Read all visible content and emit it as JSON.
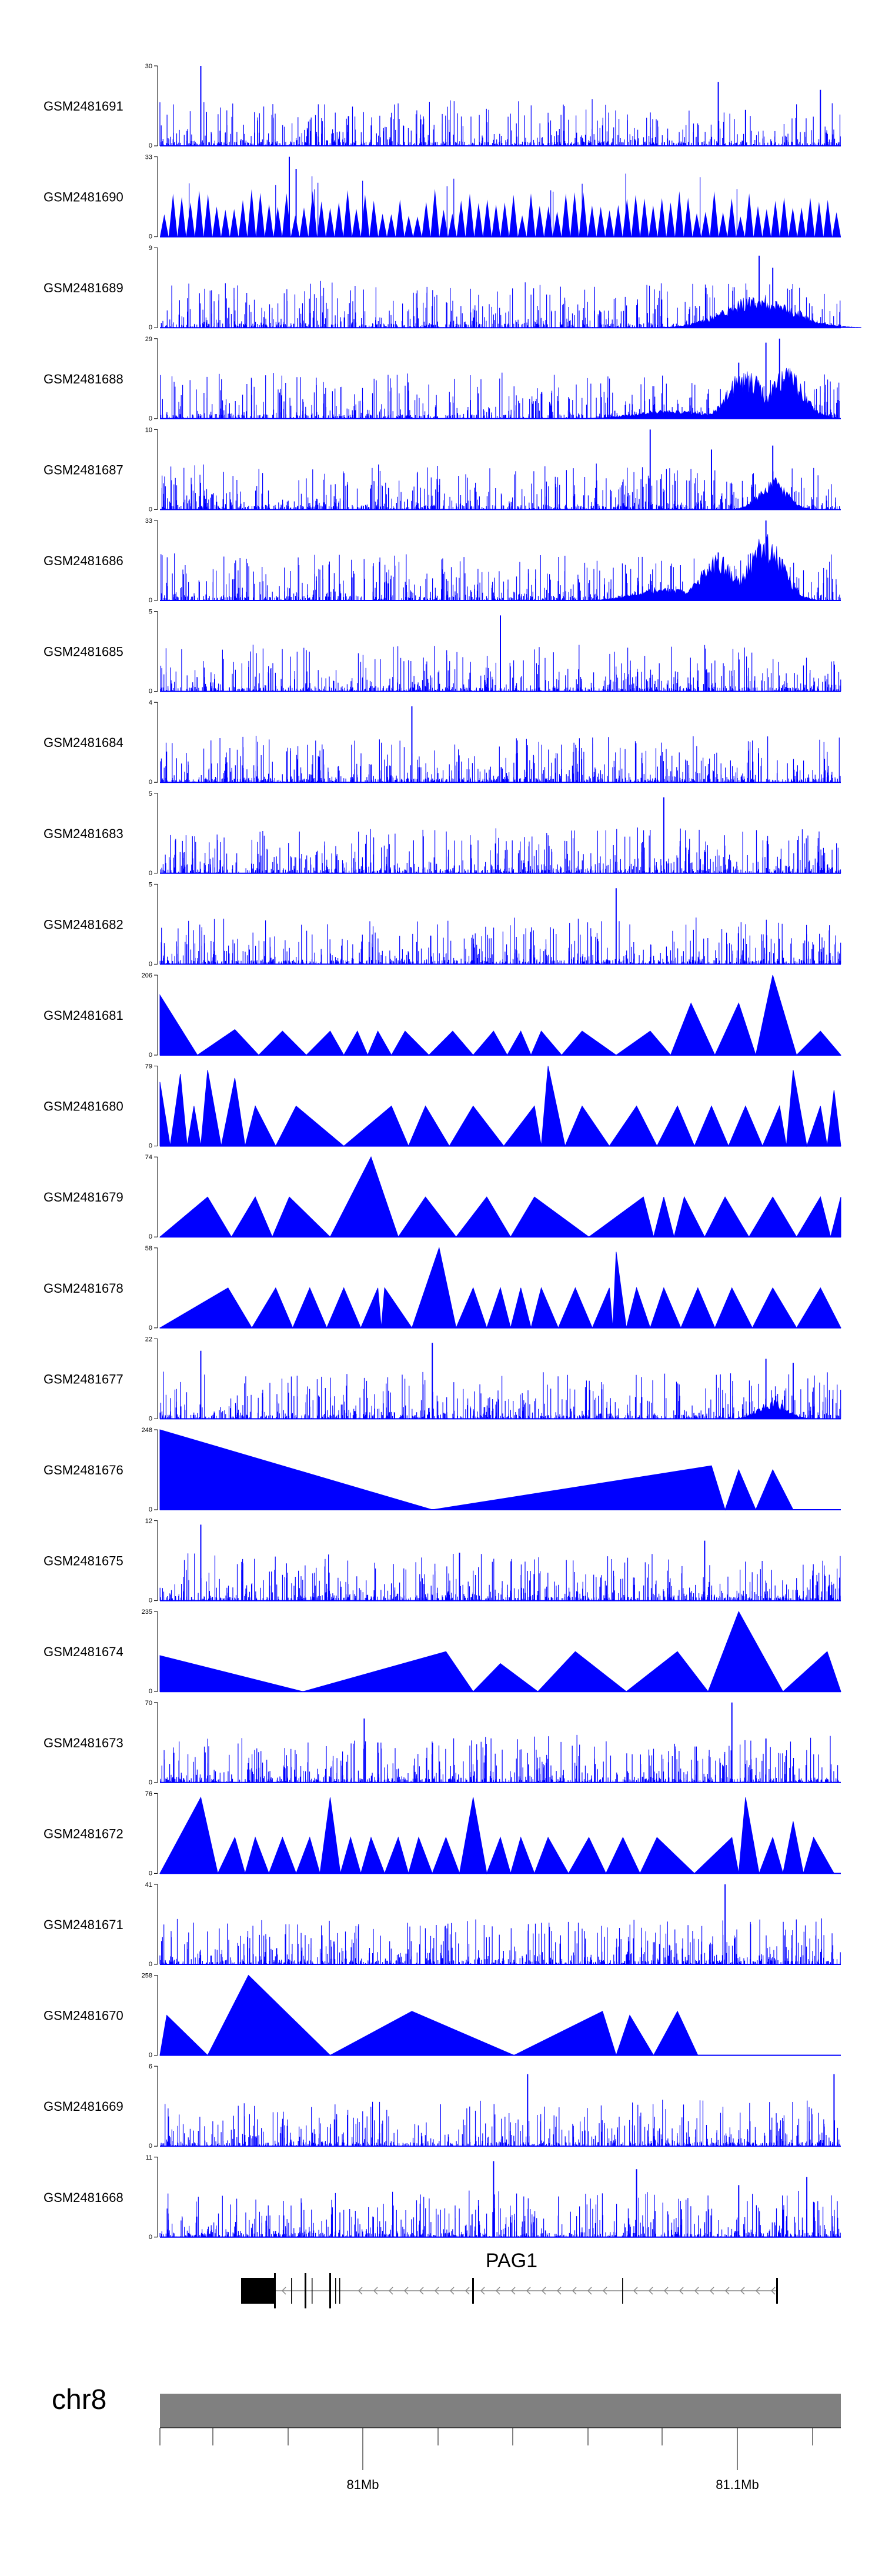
{
  "chart_data": {
    "type": "area",
    "color_signal": "#0000ff",
    "color_chromosome": "#808080",
    "tracks": [
      {
        "name": "GSM2481691",
        "ymax": 30,
        "ymin": 0,
        "style": "dense",
        "peaks": [
          [
            0.06,
            1.0
          ],
          [
            0.82,
            0.8
          ],
          [
            0.86,
            0.45
          ],
          [
            0.97,
            0.7
          ]
        ],
        "bumps": []
      },
      {
        "name": "GSM2481690",
        "ymax": 33,
        "ymin": 0,
        "style": "spikes",
        "peaks": [
          [
            0.2,
            0.85
          ],
          [
            0.19,
            1.0
          ]
        ]
      },
      {
        "name": "GSM2481689",
        "ymax": 9,
        "ymin": 0,
        "style": "dense",
        "peaks": [
          [
            0.88,
            0.9
          ],
          [
            0.9,
            0.75
          ]
        ],
        "bumps": [
          [
            0.88,
            0.35,
            0.05
          ]
        ]
      },
      {
        "name": "GSM2481688",
        "ymax": 29,
        "ymin": 0,
        "style": "dense",
        "peaks": [
          [
            0.85,
            0.7
          ],
          [
            0.89,
            0.95
          ],
          [
            0.91,
            1.0
          ]
        ],
        "bumps": [
          [
            0.86,
            0.55,
            0.025
          ],
          [
            0.92,
            0.55,
            0.025
          ],
          [
            0.75,
            0.1,
            0.05
          ]
        ]
      },
      {
        "name": "GSM2481687",
        "ymax": 10,
        "ymin": 0,
        "style": "dense",
        "peaks": [
          [
            0.72,
            1.0
          ],
          [
            0.81,
            0.75
          ],
          [
            0.9,
            0.8
          ]
        ],
        "bumps": [
          [
            0.9,
            0.35,
            0.02
          ]
        ]
      },
      {
        "name": "GSM2481686",
        "ymax": 33,
        "ymin": 0,
        "style": "dense",
        "peaks": [
          [
            0.82,
            0.6
          ],
          [
            0.89,
            1.0
          ]
        ],
        "bumps": [
          [
            0.82,
            0.5,
            0.025
          ],
          [
            0.89,
            0.7,
            0.025
          ],
          [
            0.74,
            0.15,
            0.04
          ]
        ]
      },
      {
        "name": "GSM2481685",
        "ymax": 5,
        "ymin": 0,
        "style": "dense",
        "peaks": [
          [
            0.5,
            0.95
          ]
        ],
        "bumps": []
      },
      {
        "name": "GSM2481684",
        "ymax": 4,
        "ymin": 0,
        "style": "dense",
        "peaks": [
          [
            0.37,
            0.95
          ]
        ],
        "bumps": []
      },
      {
        "name": "GSM2481683",
        "ymax": 5,
        "ymin": 0,
        "style": "dense",
        "peaks": [
          [
            0.74,
            0.95
          ]
        ],
        "bumps": []
      },
      {
        "name": "GSM2481682",
        "ymax": 5,
        "ymin": 0,
        "style": "dense",
        "peaks": [
          [
            0.67,
            0.95
          ]
        ],
        "bumps": []
      },
      {
        "name": "GSM2481681",
        "ymax": 206,
        "ymin": 0,
        "style": "triangles",
        "peaks": [
          [
            0.0,
            0.75
          ],
          [
            0.11,
            0.32
          ],
          [
            0.18,
            0.3
          ],
          [
            0.25,
            0.3
          ],
          [
            0.29,
            0.3
          ],
          [
            0.32,
            0.3
          ],
          [
            0.36,
            0.3
          ],
          [
            0.43,
            0.3
          ],
          [
            0.49,
            0.3
          ],
          [
            0.53,
            0.3
          ],
          [
            0.56,
            0.3
          ],
          [
            0.62,
            0.3
          ],
          [
            0.72,
            0.3
          ],
          [
            0.78,
            0.65
          ],
          [
            0.85,
            0.65
          ],
          [
            0.9,
            1.0
          ],
          [
            0.97,
            0.3
          ]
        ]
      },
      {
        "name": "GSM2481680",
        "ymax": 79,
        "ymin": 0,
        "style": "triangles",
        "peaks": [
          [
            0.0,
            0.8
          ],
          [
            0.03,
            0.9
          ],
          [
            0.05,
            0.5
          ],
          [
            0.07,
            0.95
          ],
          [
            0.11,
            0.85
          ],
          [
            0.14,
            0.5
          ],
          [
            0.2,
            0.5
          ],
          [
            0.34,
            0.5
          ],
          [
            0.39,
            0.5
          ],
          [
            0.46,
            0.5
          ],
          [
            0.55,
            0.5
          ],
          [
            0.57,
            1.0
          ],
          [
            0.62,
            0.5
          ],
          [
            0.7,
            0.5
          ],
          [
            0.76,
            0.5
          ],
          [
            0.81,
            0.5
          ],
          [
            0.86,
            0.5
          ],
          [
            0.91,
            0.5
          ],
          [
            0.93,
            0.95
          ],
          [
            0.97,
            0.5
          ],
          [
            0.99,
            0.7
          ]
        ]
      },
      {
        "name": "GSM2481679",
        "ymax": 74,
        "ymin": 0,
        "style": "triangles",
        "peaks": [
          [
            0.07,
            0.5
          ],
          [
            0.14,
            0.5
          ],
          [
            0.19,
            0.5
          ],
          [
            0.31,
            1.0
          ],
          [
            0.39,
            0.5
          ],
          [
            0.48,
            0.5
          ],
          [
            0.55,
            0.5
          ],
          [
            0.71,
            0.5
          ],
          [
            0.74,
            0.5
          ],
          [
            0.77,
            0.5
          ],
          [
            0.83,
            0.5
          ],
          [
            0.9,
            0.5
          ],
          [
            0.97,
            0.5
          ],
          [
            1.0,
            0.5
          ]
        ]
      },
      {
        "name": "GSM2481678",
        "ymax": 58,
        "ymin": 0,
        "style": "triangles",
        "peaks": [
          [
            0.1,
            0.5
          ],
          [
            0.17,
            0.5
          ],
          [
            0.22,
            0.5
          ],
          [
            0.27,
            0.5
          ],
          [
            0.32,
            0.5
          ],
          [
            0.33,
            0.5
          ],
          [
            0.41,
            1.0
          ],
          [
            0.46,
            0.5
          ],
          [
            0.5,
            0.5
          ],
          [
            0.53,
            0.5
          ],
          [
            0.56,
            0.5
          ],
          [
            0.61,
            0.5
          ],
          [
            0.66,
            0.5
          ],
          [
            0.67,
            0.95
          ],
          [
            0.7,
            0.5
          ],
          [
            0.74,
            0.5
          ],
          [
            0.79,
            0.5
          ],
          [
            0.84,
            0.5
          ],
          [
            0.9,
            0.5
          ],
          [
            0.97,
            0.5
          ]
        ]
      },
      {
        "name": "GSM2481677",
        "ymax": 22,
        "ymin": 0,
        "style": "dense",
        "peaks": [
          [
            0.06,
            0.85
          ],
          [
            0.4,
            0.95
          ],
          [
            0.89,
            0.75
          ],
          [
            0.93,
            0.7
          ]
        ],
        "bumps": [
          [
            0.9,
            0.2,
            0.02
          ]
        ]
      },
      {
        "name": "GSM2481676",
        "ymax": 248,
        "ymin": 0,
        "style": "triangles",
        "peaks": [
          [
            0.0,
            1.0
          ],
          [
            0.81,
            0.55
          ],
          [
            0.85,
            0.5
          ],
          [
            0.9,
            0.5
          ]
        ],
        "zero_at": [
          0.4
        ]
      },
      {
        "name": "GSM2481675",
        "ymax": 12,
        "ymin": 0,
        "style": "dense",
        "peaks": [
          [
            0.06,
            0.95
          ],
          [
            0.44,
            0.6
          ],
          [
            0.8,
            0.75
          ]
        ],
        "bumps": []
      },
      {
        "name": "GSM2481674",
        "ymax": 235,
        "ymin": 0,
        "style": "triangles",
        "peaks": [
          [
            0.0,
            0.45
          ],
          [
            0.42,
            0.5
          ],
          [
            0.5,
            0.35
          ],
          [
            0.61,
            0.5
          ],
          [
            0.76,
            0.5
          ],
          [
            0.85,
            1.0
          ],
          [
            0.98,
            0.5
          ]
        ],
        "zero_at": [
          0.21
        ]
      },
      {
        "name": "GSM2481673",
        "ymax": 70,
        "ymin": 0,
        "style": "dense",
        "peaks": [
          [
            0.3,
            0.8
          ],
          [
            0.32,
            0.5
          ],
          [
            0.84,
            1.0
          ],
          [
            0.89,
            0.55
          ]
        ],
        "bumps": []
      },
      {
        "name": "GSM2481672",
        "ymax": 76,
        "ymin": 0,
        "style": "triangles",
        "peaks": [
          [
            0.06,
            0.95
          ],
          [
            0.11,
            0.45
          ],
          [
            0.14,
            0.45
          ],
          [
            0.18,
            0.45
          ],
          [
            0.22,
            0.45
          ],
          [
            0.25,
            0.95
          ],
          [
            0.28,
            0.45
          ],
          [
            0.31,
            0.45
          ],
          [
            0.35,
            0.45
          ],
          [
            0.38,
            0.45
          ],
          [
            0.42,
            0.45
          ],
          [
            0.46,
            0.95
          ],
          [
            0.5,
            0.45
          ],
          [
            0.53,
            0.45
          ],
          [
            0.57,
            0.45
          ],
          [
            0.63,
            0.45
          ],
          [
            0.68,
            0.45
          ],
          [
            0.73,
            0.45
          ],
          [
            0.84,
            0.45
          ],
          [
            0.86,
            0.95
          ],
          [
            0.9,
            0.45
          ],
          [
            0.93,
            0.65
          ],
          [
            0.96,
            0.45
          ]
        ]
      },
      {
        "name": "GSM2481671",
        "ymax": 41,
        "ymin": 0,
        "style": "dense",
        "peaks": [
          [
            0.83,
            1.0
          ]
        ],
        "bumps": []
      },
      {
        "name": "GSM2481670",
        "ymax": 258,
        "ymin": 0,
        "style": "triangles",
        "peaks": [
          [
            0.01,
            0.5
          ],
          [
            0.13,
            1.0
          ],
          [
            0.37,
            0.55
          ],
          [
            0.65,
            0.55
          ],
          [
            0.69,
            0.5
          ],
          [
            0.76,
            0.55
          ]
        ],
        "zero_at": [
          0.25,
          0.52
        ]
      },
      {
        "name": "GSM2481669",
        "ymax": 6,
        "ymin": 0,
        "style": "dense",
        "peaks": [
          [
            0.54,
            0.9
          ],
          [
            0.99,
            0.9
          ]
        ],
        "bumps": []
      },
      {
        "name": "GSM2481668",
        "ymax": 11,
        "ymin": 0,
        "style": "dense",
        "peaks": [
          [
            0.49,
            0.95
          ],
          [
            0.7,
            0.85
          ],
          [
            0.85,
            0.65
          ],
          [
            0.95,
            0.75
          ]
        ],
        "bumps": []
      }
    ],
    "gene": {
      "name": "PAG1",
      "strand": "-"
    },
    "chromosome": "chr8",
    "x_axis": {
      "ticks": [
        "81Mb",
        "81.1Mb"
      ],
      "unit": "Mb"
    }
  }
}
